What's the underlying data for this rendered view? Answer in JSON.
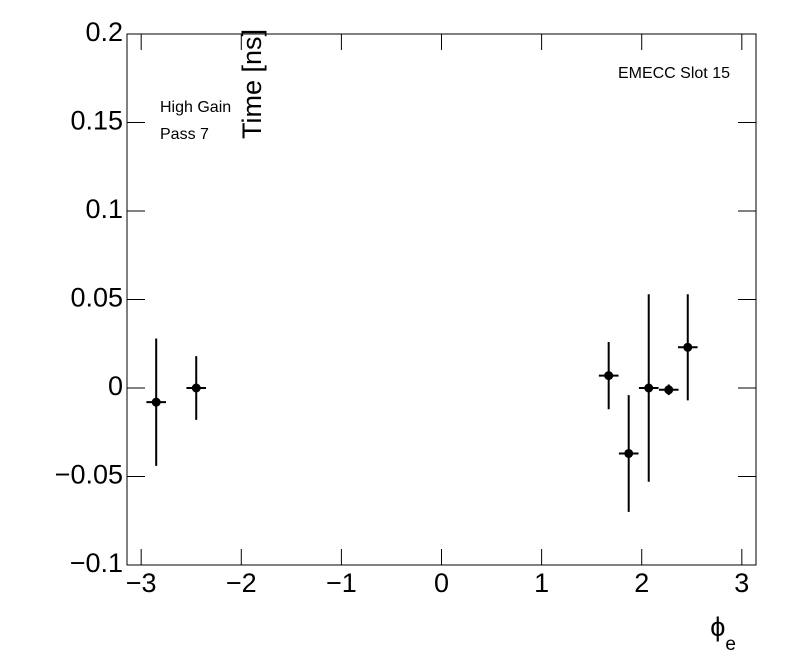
{
  "chart_data": {
    "type": "scatter",
    "y_label": "Time [ns]",
    "x_label": {
      "symbol": "ϕ",
      "subscript": "e"
    },
    "annotations": [
      "High Gain",
      "Pass 7",
      "EMECC Slot 15"
    ],
    "color": "#000000",
    "x": [
      -2.85,
      -2.45,
      1.67,
      1.87,
      2.07,
      2.27,
      2.46
    ],
    "xerr": [
      0.098,
      0.098,
      0.098,
      0.098,
      0.098,
      0.098,
      0.098
    ],
    "values": [
      -0.008,
      0.0,
      0.007,
      -0.037,
      0.0,
      -0.001,
      0.023
    ],
    "yerr": [
      0.036,
      0.018,
      0.019,
      0.033,
      0.053,
      0.003,
      0.03
    ],
    "xlim": [
      -3.1416,
      3.1416
    ],
    "xticks": [
      {
        "value": -3,
        "label": "−3"
      },
      {
        "value": -2,
        "label": "−2"
      },
      {
        "value": -1,
        "label": "−1"
      },
      0,
      1,
      2,
      3
    ],
    "ylim": [
      -0.1,
      0.2
    ],
    "yticks": [
      {
        "value": -0.1,
        "label": "−0.1"
      },
      {
        "value": -0.05,
        "label": "−0.05"
      },
      0,
      0.05,
      0.1,
      0.15,
      0.2
    ]
  }
}
